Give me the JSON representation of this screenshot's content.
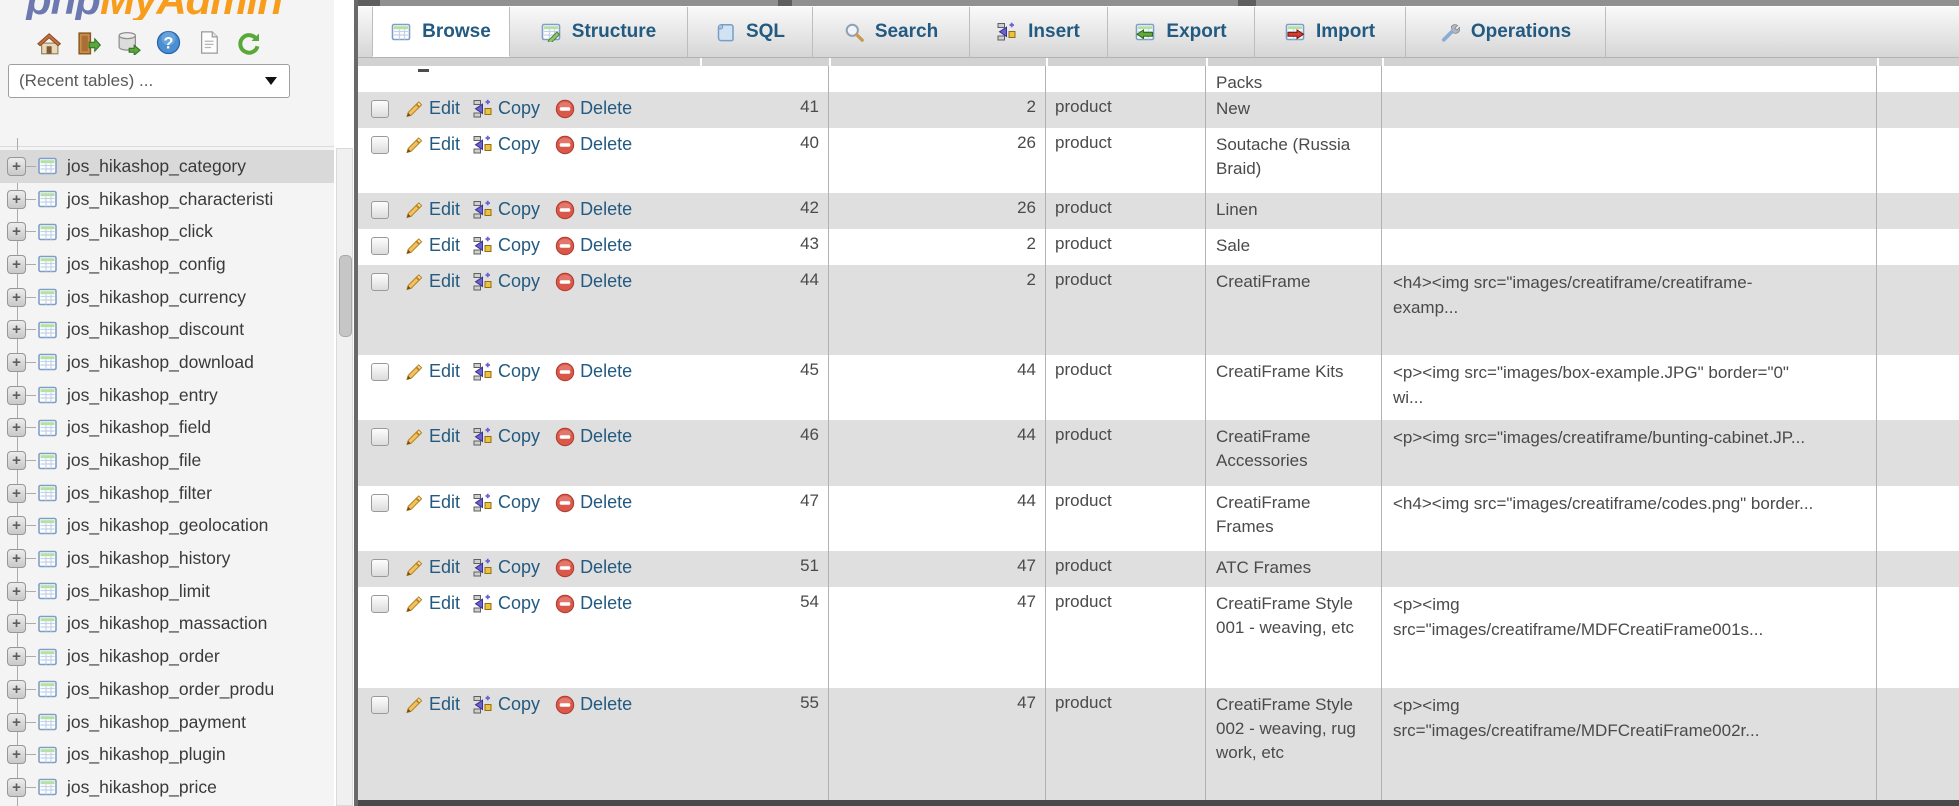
{
  "sidebar": {
    "logo_php": "php",
    "logo_rest": "MyAdmin",
    "nav_icon_names": [
      "home-icon",
      "logout-icon",
      "export-db-icon",
      "help-icon",
      "docs-icon",
      "refresh-icon"
    ],
    "recent_tables_label": "(Recent tables) ...",
    "tables": [
      "jos_hikashop_category",
      "jos_hikashop_characteristi",
      "jos_hikashop_click",
      "jos_hikashop_config",
      "jos_hikashop_currency",
      "jos_hikashop_discount",
      "jos_hikashop_download",
      "jos_hikashop_entry",
      "jos_hikashop_field",
      "jos_hikashop_file",
      "jos_hikashop_filter",
      "jos_hikashop_geolocation",
      "jos_hikashop_history",
      "jos_hikashop_limit",
      "jos_hikashop_massaction",
      "jos_hikashop_order",
      "jos_hikashop_order_produ",
      "jos_hikashop_payment",
      "jos_hikashop_plugin",
      "jos_hikashop_price"
    ],
    "selected_table": "jos_hikashop_category"
  },
  "tabs": [
    {
      "key": "browse",
      "label": "Browse",
      "active": true
    },
    {
      "key": "structure",
      "label": "Structure",
      "active": false
    },
    {
      "key": "sql",
      "label": "SQL",
      "active": false
    },
    {
      "key": "search",
      "label": "Search",
      "active": false
    },
    {
      "key": "insert",
      "label": "Insert",
      "active": false
    },
    {
      "key": "export",
      "label": "Export",
      "active": false
    },
    {
      "key": "import",
      "label": "Import",
      "active": false
    },
    {
      "key": "operations",
      "label": "Operations",
      "active": false
    }
  ],
  "table": {
    "partial_row_name": "Packs",
    "action_labels": {
      "edit": "Edit",
      "copy": "Copy",
      "delete": "Delete"
    },
    "rows": [
      {
        "id": "41",
        "parent": "2",
        "type": "product",
        "name": "New",
        "desc": ""
      },
      {
        "id": "40",
        "parent": "26",
        "type": "product",
        "name": "Soutache (Russia Braid)",
        "desc": ""
      },
      {
        "id": "42",
        "parent": "26",
        "type": "product",
        "name": "Linen",
        "desc": ""
      },
      {
        "id": "43",
        "parent": "2",
        "type": "product",
        "name": "Sale",
        "desc": ""
      },
      {
        "id": "44",
        "parent": "2",
        "type": "product",
        "name": "CreatiFrame",
        "desc": "<h4><img src=\"images/creatiframe/creatiframe-examp..."
      },
      {
        "id": "45",
        "parent": "44",
        "type": "product",
        "name": "CreatiFrame Kits",
        "desc": "<p><img src=\"images/box-example.JPG\" border=\"0\" wi..."
      },
      {
        "id": "46",
        "parent": "44",
        "type": "product",
        "name": "CreatiFrame Accessories",
        "desc": "<p><img src=\"images/creatiframe/bunting-cabinet.JP..."
      },
      {
        "id": "47",
        "parent": "44",
        "type": "product",
        "name": "CreatiFrame Frames",
        "desc": "<h4><img src=\"images/creatiframe/codes.png\" border..."
      },
      {
        "id": "51",
        "parent": "47",
        "type": "product",
        "name": "ATC Frames",
        "desc": ""
      },
      {
        "id": "54",
        "parent": "47",
        "type": "product",
        "name": "CreatiFrame Style 001 - weaving, etc",
        "desc": "<p><img src=\"images/creatiframe/MDFCreatiFrame001s..."
      },
      {
        "id": "55",
        "parent": "47",
        "type": "product",
        "name": "CreatiFrame Style 002 - weaving, rug work, etc",
        "desc": "<p><img src=\"images/creatiframe/MDFCreatiFrame002r..."
      }
    ]
  },
  "colors": {
    "link_blue": "#235a81",
    "row_alt_gray": "#dfdfdf",
    "logo_blue": "#6c78af",
    "logo_orange": "#f89c1c",
    "delete_red": "#d9584a",
    "top_strip_gray": "#909090"
  }
}
